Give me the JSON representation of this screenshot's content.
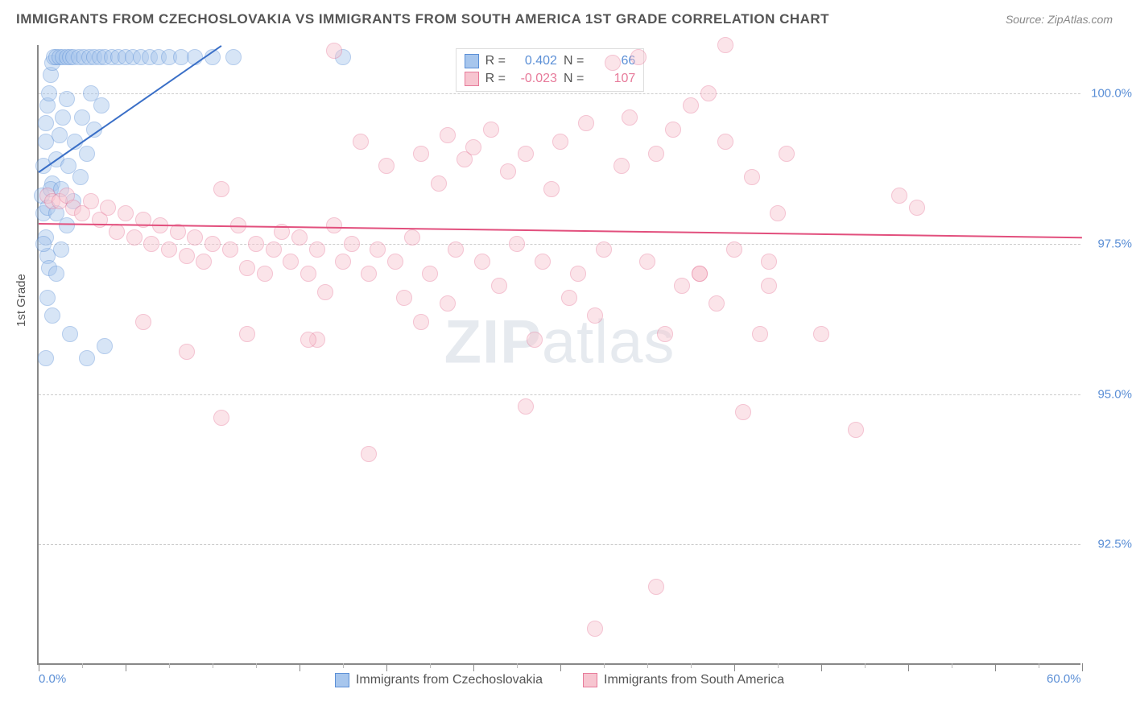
{
  "title": "IMMIGRANTS FROM CZECHOSLOVAKIA VS IMMIGRANTS FROM SOUTH AMERICA 1ST GRADE CORRELATION CHART",
  "source_prefix": "Source: ",
  "source_name": "ZipAtlas.com",
  "ylabel": "1st Grade",
  "watermark_a": "ZIP",
  "watermark_b": "atlas",
  "chart": {
    "type": "scatter",
    "xlim": [
      0,
      60
    ],
    "ylim": [
      90.5,
      100.8
    ],
    "xticks_labeled": [
      {
        "v": 0,
        "label": "0.0%"
      },
      {
        "v": 60,
        "label": "60.0%"
      }
    ],
    "xticks_major": [
      0,
      5,
      15,
      20,
      25,
      30,
      40,
      45,
      50,
      55,
      60
    ],
    "xticks_minor": [
      2.5,
      7.5,
      10,
      12.5,
      17.5,
      22.5,
      27.5,
      32.5,
      35,
      37.5,
      42.5,
      47.5,
      52.5,
      57.5
    ],
    "yticks": [
      {
        "v": 92.5,
        "label": "92.5%"
      },
      {
        "v": 95.0,
        "label": "95.0%"
      },
      {
        "v": 97.5,
        "label": "97.5%"
      },
      {
        "v": 100.0,
        "label": "100.0%"
      }
    ],
    "grid_color": "#cccccc",
    "background_color": "#ffffff",
    "marker_radius": 10,
    "marker_opacity": 0.45,
    "series": [
      {
        "name": "Immigrants from Czechoslovakia",
        "fill": "#a7c6ed",
        "stroke": "#5b8fd6",
        "line_color": "#3a6fc7",
        "R_label": "R =",
        "R": "0.402",
        "N_label": "N =",
        "N": "66",
        "trend": {
          "x1": 0,
          "y1": 98.7,
          "x2": 10.5,
          "y2": 100.8
        },
        "points": [
          [
            0.2,
            98.3
          ],
          [
            0.3,
            98.8
          ],
          [
            0.4,
            99.2
          ],
          [
            0.4,
            99.5
          ],
          [
            0.5,
            99.8
          ],
          [
            0.6,
            100.0
          ],
          [
            0.7,
            100.3
          ],
          [
            0.8,
            100.5
          ],
          [
            0.9,
            100.6
          ],
          [
            1.0,
            100.6
          ],
          [
            1.2,
            100.6
          ],
          [
            1.4,
            100.6
          ],
          [
            1.6,
            100.6
          ],
          [
            1.8,
            100.6
          ],
          [
            2.0,
            100.6
          ],
          [
            2.3,
            100.6
          ],
          [
            2.6,
            100.6
          ],
          [
            2.9,
            100.6
          ],
          [
            3.2,
            100.6
          ],
          [
            3.5,
            100.6
          ],
          [
            3.8,
            100.6
          ],
          [
            4.2,
            100.6
          ],
          [
            4.6,
            100.6
          ],
          [
            5.0,
            100.6
          ],
          [
            5.4,
            100.6
          ],
          [
            5.9,
            100.6
          ],
          [
            6.4,
            100.6
          ],
          [
            6.9,
            100.6
          ],
          [
            7.5,
            100.6
          ],
          [
            8.2,
            100.6
          ],
          [
            9.0,
            100.6
          ],
          [
            10.0,
            100.6
          ],
          [
            11.2,
            100.6
          ],
          [
            0.3,
            98.0
          ],
          [
            0.4,
            97.6
          ],
          [
            0.5,
            97.3
          ],
          [
            0.6,
            97.1
          ],
          [
            0.8,
            98.5
          ],
          [
            1.0,
            98.9
          ],
          [
            1.2,
            99.3
          ],
          [
            1.4,
            99.6
          ],
          [
            1.6,
            99.9
          ],
          [
            1.0,
            97.0
          ],
          [
            1.3,
            97.4
          ],
          [
            1.6,
            97.8
          ],
          [
            2.0,
            98.2
          ],
          [
            2.4,
            98.6
          ],
          [
            2.8,
            99.0
          ],
          [
            3.2,
            99.4
          ],
          [
            3.6,
            99.8
          ],
          [
            0.3,
            97.5
          ],
          [
            0.5,
            98.1
          ],
          [
            0.7,
            98.4
          ],
          [
            1.0,
            98.0
          ],
          [
            1.3,
            98.4
          ],
          [
            1.7,
            98.8
          ],
          [
            2.1,
            99.2
          ],
          [
            2.5,
            99.6
          ],
          [
            3.0,
            100.0
          ],
          [
            0.5,
            96.6
          ],
          [
            0.8,
            96.3
          ],
          [
            1.8,
            96.0
          ],
          [
            2.8,
            95.6
          ],
          [
            3.8,
            95.8
          ],
          [
            0.4,
            95.6
          ],
          [
            17.5,
            100.6
          ]
        ]
      },
      {
        "name": "Immigrants from South America",
        "fill": "#f7c5d0",
        "stroke": "#e77a9a",
        "line_color": "#e24f7d",
        "R_label": "R =",
        "R": "-0.023",
        "N_label": "N =",
        "N": "107",
        "trend": {
          "x1": 0,
          "y1": 97.85,
          "x2": 60,
          "y2": 97.62
        },
        "points": [
          [
            0.5,
            98.3
          ],
          [
            0.8,
            98.2
          ],
          [
            1.2,
            98.2
          ],
          [
            1.6,
            98.3
          ],
          [
            2.0,
            98.1
          ],
          [
            2.5,
            98.0
          ],
          [
            3.0,
            98.2
          ],
          [
            3.5,
            97.9
          ],
          [
            4.0,
            98.1
          ],
          [
            4.5,
            97.7
          ],
          [
            5.0,
            98.0
          ],
          [
            5.5,
            97.6
          ],
          [
            6.0,
            97.9
          ],
          [
            6.5,
            97.5
          ],
          [
            7.0,
            97.8
          ],
          [
            7.5,
            97.4
          ],
          [
            8.0,
            97.7
          ],
          [
            8.5,
            97.3
          ],
          [
            9.0,
            97.6
          ],
          [
            9.5,
            97.2
          ],
          [
            10.0,
            97.5
          ],
          [
            10.5,
            98.4
          ],
          [
            11.0,
            97.4
          ],
          [
            11.5,
            97.8
          ],
          [
            12.0,
            97.1
          ],
          [
            12.5,
            97.5
          ],
          [
            13.0,
            97.0
          ],
          [
            13.5,
            97.4
          ],
          [
            14.0,
            97.7
          ],
          [
            14.5,
            97.2
          ],
          [
            15.0,
            97.6
          ],
          [
            15.5,
            97.0
          ],
          [
            16.0,
            97.4
          ],
          [
            16.5,
            96.7
          ],
          [
            17.0,
            97.8
          ],
          [
            17.5,
            97.2
          ],
          [
            18.0,
            97.5
          ],
          [
            18.5,
            99.2
          ],
          [
            19.0,
            97.0
          ],
          [
            19.5,
            97.4
          ],
          [
            20.0,
            98.8
          ],
          [
            20.5,
            97.2
          ],
          [
            21.0,
            96.6
          ],
          [
            21.5,
            97.6
          ],
          [
            22.0,
            99.0
          ],
          [
            22.5,
            97.0
          ],
          [
            23.0,
            98.5
          ],
          [
            23.5,
            99.3
          ],
          [
            24.0,
            97.4
          ],
          [
            24.5,
            98.9
          ],
          [
            25.0,
            99.1
          ],
          [
            25.5,
            97.2
          ],
          [
            26.0,
            99.4
          ],
          [
            26.5,
            96.8
          ],
          [
            27.0,
            98.7
          ],
          [
            27.5,
            97.5
          ],
          [
            28.0,
            99.0
          ],
          [
            28.5,
            95.9
          ],
          [
            29.0,
            97.2
          ],
          [
            29.5,
            98.4
          ],
          [
            30.0,
            99.2
          ],
          [
            30.5,
            96.6
          ],
          [
            31.0,
            97.0
          ],
          [
            31.5,
            99.5
          ],
          [
            32.0,
            96.3
          ],
          [
            32.5,
            97.4
          ],
          [
            33.0,
            100.5
          ],
          [
            33.5,
            98.8
          ],
          [
            34.0,
            99.6
          ],
          [
            34.5,
            100.6
          ],
          [
            35.0,
            97.2
          ],
          [
            35.5,
            99.0
          ],
          [
            36.0,
            96.0
          ],
          [
            36.5,
            99.4
          ],
          [
            37.0,
            96.8
          ],
          [
            37.5,
            99.8
          ],
          [
            38.0,
            97.0
          ],
          [
            38.5,
            100.0
          ],
          [
            39.0,
            96.5
          ],
          [
            39.5,
            99.2
          ],
          [
            40.0,
            97.4
          ],
          [
            40.5,
            94.7
          ],
          [
            41.0,
            98.6
          ],
          [
            41.5,
            96.0
          ],
          [
            42.0,
            97.2
          ],
          [
            42.5,
            98.0
          ],
          [
            43.0,
            99.0
          ],
          [
            28.0,
            94.8
          ],
          [
            19.0,
            94.0
          ],
          [
            10.5,
            94.6
          ],
          [
            8.5,
            95.7
          ],
          [
            16.0,
            95.9
          ],
          [
            22.0,
            96.2
          ],
          [
            15.5,
            95.9
          ],
          [
            35.5,
            91.8
          ],
          [
            32.0,
            91.1
          ],
          [
            38.0,
            97.0
          ],
          [
            42.0,
            96.8
          ],
          [
            45.0,
            96.0
          ],
          [
            49.5,
            98.3
          ],
          [
            50.5,
            98.1
          ],
          [
            47.0,
            94.4
          ],
          [
            39.5,
            102.0
          ],
          [
            17.0,
            100.7
          ],
          [
            6.0,
            96.2
          ],
          [
            12.0,
            96.0
          ],
          [
            23.5,
            96.5
          ]
        ]
      }
    ]
  },
  "legend": {
    "item1": "Immigrants from Czechoslovakia",
    "item2": "Immigrants from South America"
  }
}
